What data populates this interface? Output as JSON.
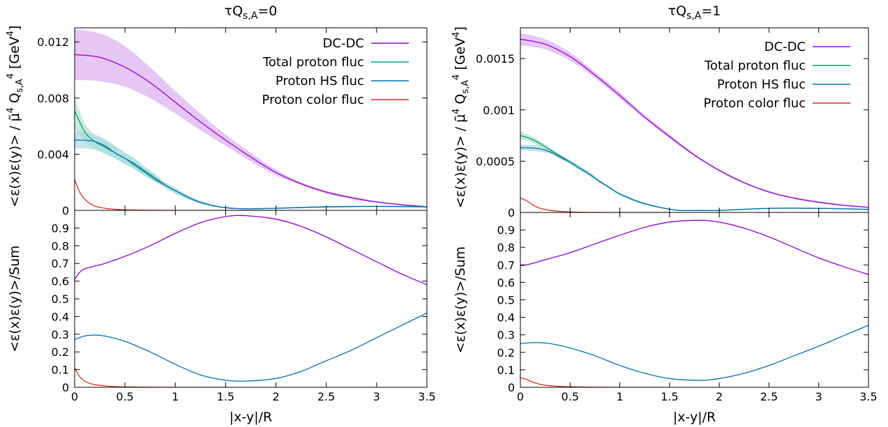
{
  "chart_data": [
    {
      "type": "line",
      "panel": "left-top",
      "title": "τQ<sub>s,A</sub>=0",
      "title_main": "τQ",
      "title_sub": "s,A",
      "title_tail": "=0",
      "ylabel_parts": [
        "<ε(x)ε(y)> / ",
        "μ̃",
        "4",
        " Q",
        "s,A",
        "4",
        " [GeV",
        "4",
        "]"
      ],
      "ylim": [
        0,
        0.013
      ],
      "yticks": [
        0,
        0.004,
        0.008,
        0.012
      ],
      "ytick_labels": [
        "0",
        "0.004",
        "0.008",
        "0.012"
      ],
      "xlim": [
        0,
        3.5
      ],
      "legend_position": "top-right",
      "series": [
        {
          "name": "DC-DC",
          "color": "#9400d3",
          "x": [
            0,
            0.25,
            0.5,
            0.75,
            1.0,
            1.25,
            1.5,
            1.75,
            2.0,
            2.25,
            2.5,
            2.75,
            3.0,
            3.25,
            3.5
          ],
          "y": [
            0.0111,
            0.0109,
            0.0102,
            0.0091,
            0.0077,
            0.0063,
            0.005,
            0.0038,
            0.0027,
            0.0019,
            0.0013,
            0.0009,
            0.0006,
            0.0004,
            0.00025
          ],
          "band_low": [
            0.0093,
            0.0092,
            0.0088,
            0.008,
            0.0069,
            0.0057,
            0.0046,
            0.0035,
            0.0025,
            0.0018,
            0.0012,
            0.0008,
            0.00055,
            0.00035,
            0.0002
          ],
          "band_high": [
            0.0129,
            0.0126,
            0.0117,
            0.0102,
            0.0085,
            0.0069,
            0.0054,
            0.0041,
            0.0029,
            0.002,
            0.0014,
            0.001,
            0.00065,
            0.00045,
            0.0003
          ],
          "band_color": "#d8a8f0"
        },
        {
          "name": "Total proton fluc",
          "color": "#009e73",
          "x": [
            0,
            0.1,
            0.2,
            0.3,
            0.4,
            0.5,
            0.6,
            0.7,
            0.8,
            0.9,
            1.0,
            1.2,
            1.4,
            1.6,
            1.8,
            2.0,
            2.5,
            3.0,
            3.5
          ],
          "y": [
            0.0071,
            0.0056,
            0.0049,
            0.0045,
            0.0041,
            0.0037,
            0.0033,
            0.0028,
            0.0023,
            0.0018,
            0.0014,
            0.0007,
            0.0003,
            0.00013,
            0.00012,
            0.00015,
            0.00025,
            0.00028,
            0.00025
          ],
          "band_low": [
            0.0058,
            0.0049,
            0.0044,
            0.004,
            0.0037,
            0.0033,
            0.0029,
            0.0025,
            0.0021,
            0.0016,
            0.0012,
            0.0006,
            0.00025,
            0.0001,
            0.0001,
            0.00012,
            0.0002,
            0.00024,
            0.0002
          ],
          "band_high": [
            0.008,
            0.0062,
            0.0054,
            0.005,
            0.0046,
            0.0041,
            0.0037,
            0.0031,
            0.0026,
            0.002,
            0.0016,
            0.0008,
            0.00035,
            0.00016,
            0.00014,
            0.00018,
            0.0003,
            0.00032,
            0.0003
          ],
          "band_color": "#a8e0d0"
        },
        {
          "name": "Proton HS fluc",
          "color": "#0072b2",
          "x": [
            0,
            0.1,
            0.2,
            0.3,
            0.4,
            0.5,
            0.6,
            0.7,
            0.8,
            0.9,
            1.0,
            1.2,
            1.4,
            1.6,
            1.8,
            2.0,
            2.5,
            3.0,
            3.5
          ],
          "y": [
            0.005,
            0.005,
            0.0049,
            0.0046,
            0.0041,
            0.0037,
            0.0032,
            0.0027,
            0.0022,
            0.0018,
            0.0014,
            0.0007,
            0.0003,
            0.00013,
            0.00012,
            0.00015,
            0.00025,
            0.00028,
            0.00025
          ],
          "band_low": [
            0.0044,
            0.0044,
            0.0043,
            0.0041,
            0.0037,
            0.0033,
            0.0029,
            0.0024,
            0.002,
            0.0016,
            0.0012,
            0.0006,
            0.00025,
            0.0001,
            0.0001,
            0.00012,
            0.0002,
            0.00024,
            0.0002
          ],
          "band_high": [
            0.0056,
            0.0056,
            0.0054,
            0.0051,
            0.0046,
            0.0041,
            0.0036,
            0.003,
            0.0025,
            0.002,
            0.0016,
            0.0008,
            0.00035,
            0.00016,
            0.00014,
            0.00018,
            0.0003,
            0.00032,
            0.0003
          ],
          "band_color": "#a8d8e0"
        },
        {
          "name": "Proton color fluc",
          "color": "#d62d20",
          "x": [
            0,
            0.05,
            0.1,
            0.15,
            0.2,
            0.3,
            0.4,
            0.5,
            0.7,
            1.0,
            1.5,
            2.0
          ],
          "y": [
            0.0022,
            0.0013,
            0.0008,
            0.0005,
            0.0003,
            0.00015,
            8e-05,
            4e-05,
            1e-05,
            0.0,
            0.0,
            0.0
          ]
        }
      ]
    },
    {
      "type": "line",
      "panel": "left-bottom",
      "ylabel": "<ε(x)ε(y)>/Sum",
      "xlabel": "|x-y|/R",
      "ylim": [
        0,
        1
      ],
      "yticks": [
        0,
        0.1,
        0.2,
        0.3,
        0.4,
        0.5,
        0.6,
        0.7,
        0.8,
        0.9
      ],
      "ytick_labels": [
        "0",
        "0.1",
        "0.2",
        "0.3",
        "0.4",
        "0.5",
        "0.6",
        "0.7",
        "0.8",
        "0.9"
      ],
      "xlim": [
        0,
        3.5
      ],
      "xticks": [
        0,
        0.5,
        1,
        1.5,
        2,
        2.5,
        3,
        3.5
      ],
      "xtick_labels": [
        "0",
        "0.5",
        "1",
        "1.5",
        "2",
        "2.5",
        "3",
        "3.5"
      ],
      "series": [
        {
          "name": "DC-DC",
          "color": "#9400d3",
          "x": [
            0,
            0.05,
            0.1,
            0.2,
            0.3,
            0.5,
            0.75,
            1.0,
            1.25,
            1.5,
            1.7,
            2.0,
            2.25,
            2.5,
            2.75,
            3.0,
            3.25,
            3.5
          ],
          "y": [
            0.61,
            0.65,
            0.67,
            0.685,
            0.7,
            0.74,
            0.8,
            0.87,
            0.93,
            0.965,
            0.97,
            0.95,
            0.91,
            0.85,
            0.78,
            0.71,
            0.64,
            0.58
          ]
        },
        {
          "name": "Proton HS fluc",
          "color": "#0072b2",
          "x": [
            0,
            0.1,
            0.2,
            0.3,
            0.5,
            0.75,
            1.0,
            1.25,
            1.5,
            1.7,
            2.0,
            2.25,
            2.5,
            2.75,
            3.0,
            3.25,
            3.5
          ],
          "y": [
            0.27,
            0.29,
            0.295,
            0.29,
            0.26,
            0.2,
            0.13,
            0.07,
            0.04,
            0.035,
            0.05,
            0.09,
            0.15,
            0.21,
            0.28,
            0.35,
            0.42
          ]
        },
        {
          "name": "Proton color fluc",
          "color": "#d62d20",
          "x": [
            0,
            0.05,
            0.1,
            0.15,
            0.2,
            0.3,
            0.4,
            0.5,
            0.7,
            1.0,
            1.5
          ],
          "y": [
            0.11,
            0.06,
            0.035,
            0.022,
            0.015,
            0.008,
            0.004,
            0.002,
            0.001,
            0.0,
            0.0
          ]
        }
      ]
    },
    {
      "type": "line",
      "panel": "right-top",
      "title_main": "τQ",
      "title_sub": "s,A",
      "title_tail": "=1",
      "ylabel_parts": [
        "<ε(x)ε(y)> / ",
        "μ̃",
        "4",
        " Q",
        "s,A",
        "4",
        " [GeV",
        "4",
        "]"
      ],
      "ylim": [
        0,
        0.0018
      ],
      "yticks": [
        0,
        0.0005,
        0.001,
        0.0015
      ],
      "ytick_labels": [
        "0",
        "0.0005",
        "0.001",
        "0.0015"
      ],
      "xlim": [
        0,
        3.5
      ],
      "legend_position": "top-right",
      "series": [
        {
          "name": "DC-DC",
          "color": "#9400d3",
          "x": [
            0,
            0.25,
            0.5,
            0.75,
            1.0,
            1.25,
            1.5,
            1.75,
            2.0,
            2.25,
            2.5,
            2.75,
            3.0,
            3.25,
            3.5
          ],
          "y": [
            0.00169,
            0.00164,
            0.00152,
            0.00134,
            0.00114,
            0.00093,
            0.00074,
            0.00056,
            0.00041,
            0.00029,
            0.0002,
            0.00014,
            0.0001,
            7e-05,
            5e-05
          ],
          "band_low": [
            0.00163,
            0.00159,
            0.00148,
            0.00131,
            0.00111,
            0.00091,
            0.00072,
            0.00055,
            0.0004,
            0.00028,
            0.00019,
            0.00013,
            9e-05,
            6.5e-05,
            4.5e-05
          ],
          "band_high": [
            0.00175,
            0.00169,
            0.00156,
            0.00137,
            0.00117,
            0.00095,
            0.00076,
            0.00057,
            0.00042,
            0.0003,
            0.00021,
            0.00015,
            0.00011,
            7.5e-05,
            5.5e-05
          ],
          "band_color": "#d8a8f0"
        },
        {
          "name": "Total proton fluc",
          "color": "#009e73",
          "x": [
            0,
            0.1,
            0.2,
            0.3,
            0.4,
            0.5,
            0.6,
            0.7,
            0.8,
            0.9,
            1.0,
            1.2,
            1.4,
            1.6,
            1.8,
            2.0,
            2.5,
            3.0,
            3.5
          ],
          "y": [
            0.00075,
            0.00072,
            0.00067,
            0.00061,
            0.00055,
            0.00049,
            0.00043,
            0.00037,
            0.0003,
            0.00024,
            0.00018,
            0.0001,
            5e-05,
            2e-05,
            2e-05,
            2e-05,
            4e-05,
            4e-05,
            3e-05
          ],
          "band_low": [
            0.00071,
            0.00069,
            0.00064,
            0.00059,
            0.00053,
            0.00047,
            0.00041,
            0.00035,
            0.00029,
            0.00023,
            0.00017,
            9e-05,
            4.5e-05,
            1.8e-05,
            1.8e-05,
            1.8e-05,
            3.5e-05,
            3.5e-05,
            2.5e-05
          ],
          "band_high": [
            0.00079,
            0.00075,
            0.0007,
            0.00063,
            0.00057,
            0.00051,
            0.00045,
            0.00039,
            0.00031,
            0.00025,
            0.00019,
            0.00011,
            5.5e-05,
            2.2e-05,
            2.2e-05,
            2.2e-05,
            4.5e-05,
            4.5e-05,
            3.5e-05
          ],
          "band_color": "#a8e0d0"
        },
        {
          "name": "Proton HS fluc",
          "color": "#0072b2",
          "x": [
            0,
            0.1,
            0.2,
            0.3,
            0.4,
            0.5,
            0.6,
            0.7,
            0.8,
            0.9,
            1.0,
            1.2,
            1.4,
            1.6,
            1.8,
            2.0,
            2.5,
            3.0,
            3.5
          ],
          "y": [
            0.00063,
            0.00063,
            0.00062,
            0.00059,
            0.00054,
            0.00049,
            0.00043,
            0.00037,
            0.0003,
            0.00024,
            0.00018,
            0.0001,
            5e-05,
            2e-05,
            2e-05,
            2e-05,
            4e-05,
            4e-05,
            3e-05
          ],
          "band_low": [
            0.0006,
            0.0006,
            0.00059,
            0.00057,
            0.00052,
            0.00047,
            0.00041,
            0.00035,
            0.00029,
            0.00023,
            0.00017,
            9e-05,
            4.5e-05,
            1.8e-05,
            1.8e-05,
            1.8e-05,
            3.5e-05,
            3.5e-05,
            2.5e-05
          ],
          "band_high": [
            0.00066,
            0.00066,
            0.00065,
            0.00061,
            0.00056,
            0.00051,
            0.00045,
            0.00039,
            0.00031,
            0.00025,
            0.00019,
            0.00011,
            5.5e-05,
            2.2e-05,
            2.2e-05,
            2.2e-05,
            4.5e-05,
            4.5e-05,
            3.5e-05
          ],
          "band_color": "#a8d8e0"
        },
        {
          "name": "Proton color fluc",
          "color": "#d62d20",
          "x": [
            0,
            0.05,
            0.1,
            0.15,
            0.2,
            0.3,
            0.4,
            0.5,
            0.7,
            1.0,
            1.5
          ],
          "y": [
            0.00014,
            0.00012,
            9e-05,
            6e-05,
            4e-05,
            2e-05,
            1e-05,
            5e-06,
            1e-06,
            0.0,
            0.0
          ]
        }
      ]
    },
    {
      "type": "line",
      "panel": "right-bottom",
      "ylabel": "<ε(x)ε(y)>/Sum",
      "xlabel": "|x-y|/R",
      "ylim": [
        0,
        1
      ],
      "yticks": [
        0,
        0.1,
        0.2,
        0.3,
        0.4,
        0.5,
        0.6,
        0.7,
        0.8,
        0.9
      ],
      "ytick_labels": [
        "0",
        "0.1",
        "0.2",
        "0.3",
        "0.4",
        "0.5",
        "0.6",
        "0.7",
        "0.8",
        "0.9"
      ],
      "xlim": [
        0,
        3.5
      ],
      "xticks": [
        0,
        0.5,
        1,
        1.5,
        2,
        2.5,
        3,
        3.5
      ],
      "xtick_labels": [
        "0",
        "0.5",
        "1",
        "1.5",
        "2",
        "2.5",
        "3",
        "3.5"
      ],
      "series": [
        {
          "name": "DC-DC",
          "color": "#9400d3",
          "x": [
            0,
            0.1,
            0.25,
            0.5,
            0.75,
            1.0,
            1.25,
            1.5,
            1.8,
            2.0,
            2.25,
            2.5,
            2.75,
            3.0,
            3.25,
            3.5
          ],
          "y": [
            0.695,
            0.705,
            0.73,
            0.77,
            0.82,
            0.87,
            0.915,
            0.945,
            0.955,
            0.945,
            0.91,
            0.86,
            0.8,
            0.74,
            0.69,
            0.645
          ],
          "x_unused": []
        },
        {
          "name": "Proton HS fluc",
          "color": "#0072b2",
          "x": [
            0,
            0.1,
            0.2,
            0.3,
            0.5,
            0.75,
            1.0,
            1.25,
            1.5,
            1.8,
            2.0,
            2.25,
            2.5,
            2.75,
            3.0,
            3.25,
            3.5
          ],
          "y": [
            0.25,
            0.255,
            0.255,
            0.25,
            0.225,
            0.18,
            0.125,
            0.08,
            0.05,
            0.04,
            0.05,
            0.08,
            0.125,
            0.18,
            0.235,
            0.295,
            0.355
          ]
        },
        {
          "name": "Proton color fluc",
          "color": "#d62d20",
          "x": [
            0,
            0.05,
            0.1,
            0.15,
            0.2,
            0.3,
            0.4,
            0.5,
            0.7,
            1.0,
            1.5
          ],
          "y": [
            0.055,
            0.048,
            0.035,
            0.025,
            0.017,
            0.009,
            0.005,
            0.003,
            0.001,
            0.0,
            0.0
          ]
        }
      ]
    }
  ]
}
